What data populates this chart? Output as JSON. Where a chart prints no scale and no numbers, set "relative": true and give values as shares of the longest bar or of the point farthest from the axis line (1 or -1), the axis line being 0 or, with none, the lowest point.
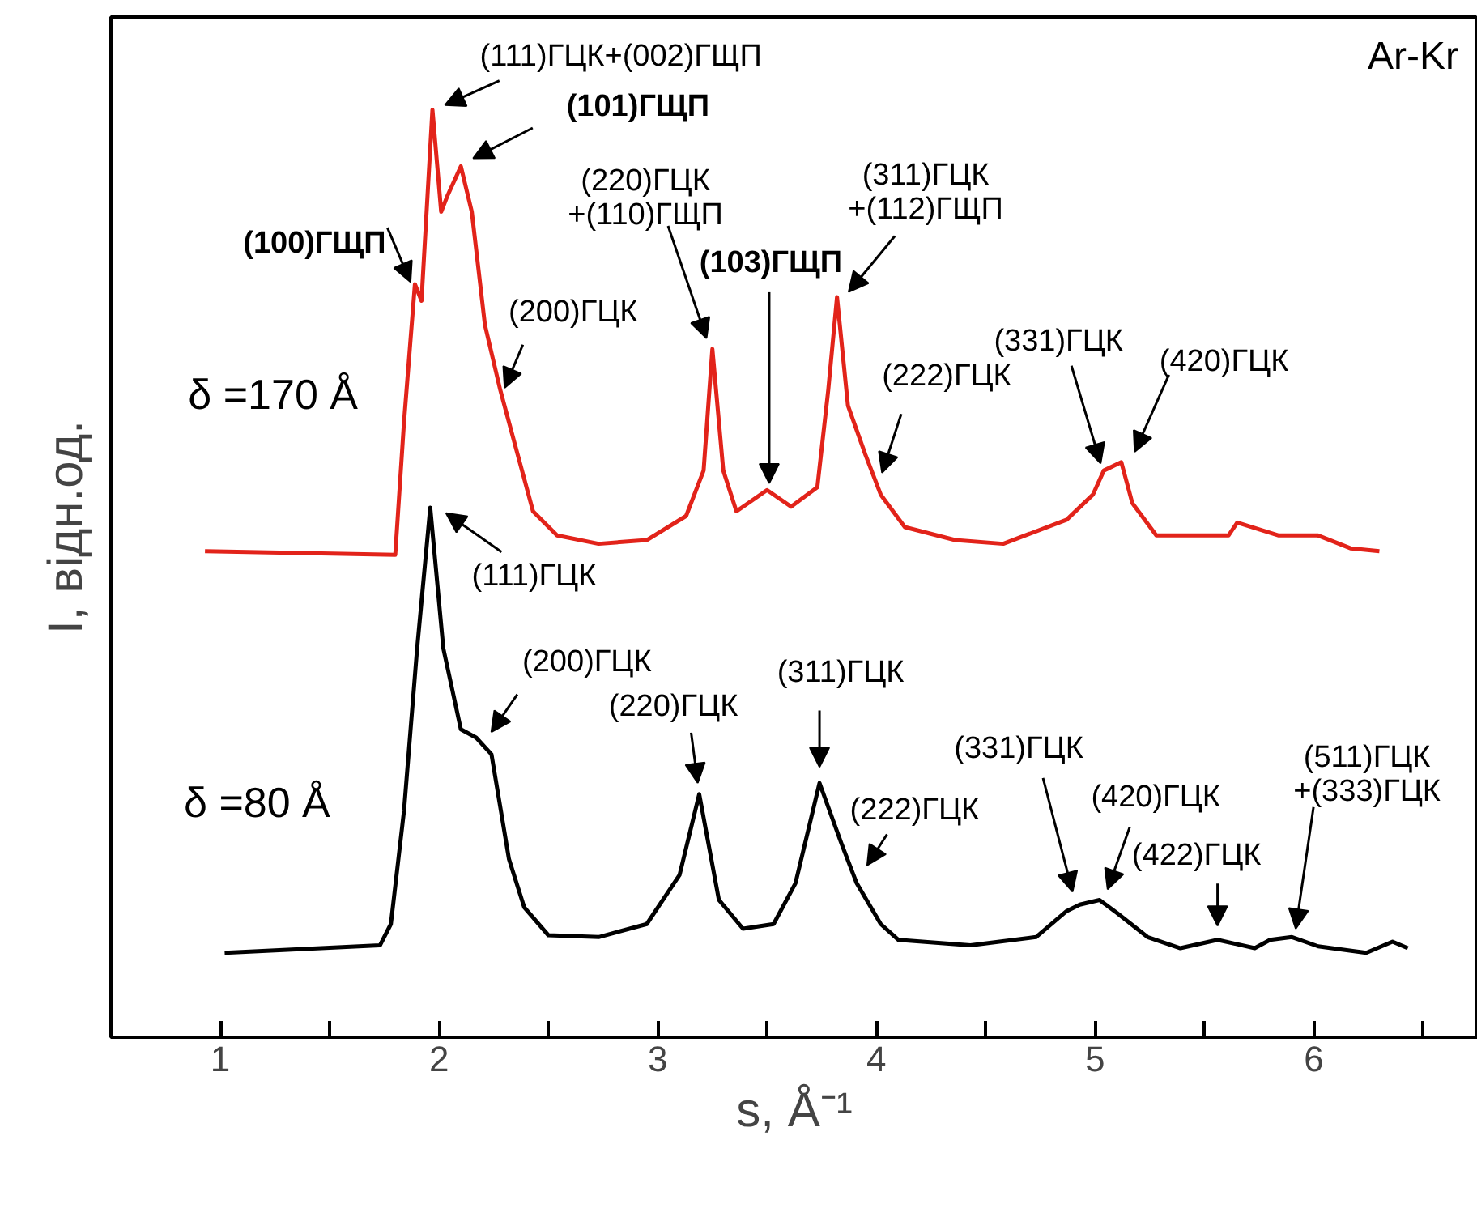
{
  "chart_data": {
    "type": "line",
    "relative": true,
    "xlabel": "s, Å⁻¹",
    "ylabel": "I, відн.од.",
    "xlim": [
      0.5,
      6.75
    ],
    "xticks": [
      1,
      {
        "value": 1.5,
        "label": null
      },
      2,
      {
        "value": 2.5,
        "label": null
      },
      3,
      {
        "value": 3.5,
        "label": null
      },
      4,
      {
        "value": 4.5,
        "label": null
      },
      5,
      {
        "value": 5.5,
        "label": null
      },
      6,
      {
        "value": 6.5,
        "label": null
      }
    ],
    "grid": false,
    "series": [
      {
        "name": "δ =170 Å",
        "color": "#e2231a",
        "x": [
          0.93,
          1.8,
          1.84,
          1.89,
          1.92,
          1.97,
          2.01,
          2.04,
          2.1,
          2.15,
          2.21,
          2.28,
          2.36,
          2.43,
          2.54,
          2.73,
          2.95,
          3.13,
          3.21,
          3.25,
          3.3,
          3.36,
          3.5,
          3.61,
          3.73,
          3.78,
          3.82,
          3.87,
          3.95,
          4.02,
          4.13,
          4.36,
          4.58,
          4.87,
          4.99,
          5.04,
          5.12,
          5.17,
          5.28,
          5.61,
          5.65,
          5.84,
          6.02,
          6.17,
          6.3
        ],
        "values": [
          0.524,
          0.52,
          0.663,
          0.812,
          0.794,
          1.0,
          0.89,
          0.908,
          0.939,
          0.89,
          0.768,
          0.698,
          0.628,
          0.567,
          0.541,
          0.532,
          0.536,
          0.562,
          0.611,
          0.742,
          0.611,
          0.567,
          0.59,
          0.572,
          0.593,
          0.698,
          0.798,
          0.681,
          0.628,
          0.585,
          0.55,
          0.536,
          0.532,
          0.558,
          0.585,
          0.611,
          0.62,
          0.576,
          0.541,
          0.541,
          0.555,
          0.541,
          0.541,
          0.527,
          0.524
        ]
      },
      {
        "name": "δ =80 Å",
        "color": "#000000",
        "x": [
          1.02,
          1.73,
          1.78,
          1.84,
          1.9,
          1.96,
          2.02,
          2.1,
          2.17,
          2.24,
          2.32,
          2.39,
          2.5,
          2.73,
          2.95,
          3.1,
          3.19,
          3.28,
          3.39,
          3.53,
          3.63,
          3.74,
          3.84,
          3.91,
          4.02,
          4.1,
          4.43,
          4.73,
          4.87,
          4.93,
          5.02,
          5.1,
          5.24,
          5.39,
          5.56,
          5.73,
          5.8,
          5.9,
          6.02,
          6.24,
          6.36,
          6.43
        ],
        "values": [
          0.091,
          0.099,
          0.122,
          0.244,
          0.419,
          0.571,
          0.419,
          0.332,
          0.323,
          0.305,
          0.192,
          0.14,
          0.11,
          0.108,
          0.122,
          0.175,
          0.262,
          0.148,
          0.117,
          0.122,
          0.166,
          0.274,
          0.209,
          0.166,
          0.122,
          0.105,
          0.099,
          0.108,
          0.136,
          0.143,
          0.148,
          0.134,
          0.108,
          0.096,
          0.105,
          0.096,
          0.105,
          0.108,
          0.098,
          0.091,
          0.103,
          0.096
        ]
      }
    ],
    "annotations": [
      {
        "text": "(100)ГЩП",
        "x": 1.89,
        "y": 0.803
      },
      {
        "text": "(111)ГЦК+(002)ГЩП",
        "x": 1.98,
        "y": 1.0
      },
      {
        "text": "(101)ГЩП",
        "x": 2.11,
        "y": 0.942
      },
      {
        "text": "(200)ГЦК",
        "x": 2.28,
        "y": 0.689
      },
      {
        "text": "(220)ГЦК\n+(110)ГЩП",
        "x": 3.24,
        "y": 0.742
      },
      {
        "text": "(103)ГЩП",
        "x": 3.51,
        "y": 0.585
      },
      {
        "text": "(311)ГЦК\n+(112)ГЩП",
        "x": 3.84,
        "y": 0.794
      },
      {
        "text": "(222)ГЦК",
        "x": 4.01,
        "y": 0.597
      },
      {
        "text": "(331)ГЦК",
        "x": 5.04,
        "y": 0.607
      },
      {
        "text": "(420)ГЦК",
        "x": 5.16,
        "y": 0.62
      },
      {
        "text": "(111)ГЦК",
        "x": 1.99,
        "y": 0.572
      },
      {
        "text": "(200)ГЦК",
        "x": 2.21,
        "y": 0.319
      },
      {
        "text": "(220)ГЦК",
        "x": 3.19,
        "y": 0.262
      },
      {
        "text": "(311)ГЦК",
        "x": 3.74,
        "y": 0.279
      },
      {
        "text": "(222)ГЦК",
        "x": 3.93,
        "y": 0.175
      },
      {
        "text": "(331)ГЦК",
        "x": 4.91,
        "y": 0.145
      },
      {
        "text": "(420)ГЦК",
        "x": 5.04,
        "y": 0.148
      },
      {
        "text": "(422)ГЦК",
        "x": 5.56,
        "y": 0.108
      },
      {
        "text": "(511)ГЦК\n+(333)ГЦК",
        "x": 5.91,
        "y": 0.105
      },
      "Ar-Kr"
    ]
  }
}
